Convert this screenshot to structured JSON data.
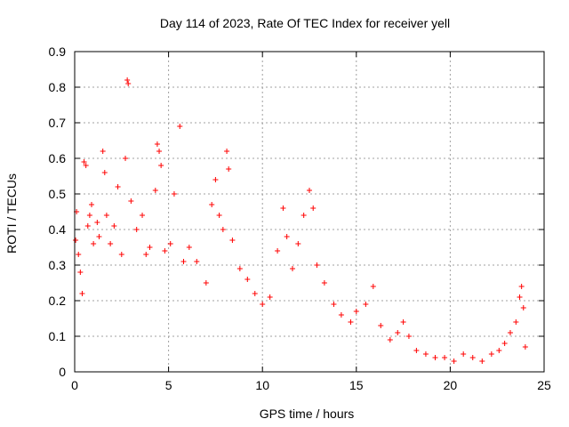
{
  "chart_data": {
    "type": "scatter",
    "title": "Day 114 of 2023, Rate Of TEC Index for receiver yell",
    "xlabel": "GPS time / hours",
    "ylabel": "ROTI / TECUs",
    "xlim": [
      0,
      25
    ],
    "ylim": [
      0,
      0.9
    ],
    "xticks": [
      "0",
      "5",
      "10",
      "15",
      "20",
      "25"
    ],
    "yticks": [
      "0",
      "0.1",
      "0.2",
      "0.3",
      "0.4",
      "0.5",
      "0.6",
      "0.7",
      "0.8",
      "0.9"
    ],
    "grid": true,
    "marker": "+",
    "color": "#ff0000",
    "series": [
      {
        "points": [
          [
            0.05,
            0.37
          ],
          [
            0.1,
            0.45
          ],
          [
            0.2,
            0.33
          ],
          [
            0.3,
            0.28
          ],
          [
            0.4,
            0.22
          ],
          [
            0.5,
            0.59
          ],
          [
            0.6,
            0.58
          ],
          [
            0.7,
            0.41
          ],
          [
            0.8,
            0.44
          ],
          [
            0.9,
            0.47
          ],
          [
            1.0,
            0.36
          ],
          [
            1.2,
            0.42
          ],
          [
            1.3,
            0.38
          ],
          [
            1.5,
            0.62
          ],
          [
            1.6,
            0.56
          ],
          [
            1.7,
            0.44
          ],
          [
            1.9,
            0.36
          ],
          [
            2.1,
            0.41
          ],
          [
            2.3,
            0.52
          ],
          [
            2.5,
            0.33
          ],
          [
            2.7,
            0.6
          ],
          [
            2.8,
            0.82
          ],
          [
            2.85,
            0.81
          ],
          [
            3.0,
            0.48
          ],
          [
            3.3,
            0.4
          ],
          [
            3.6,
            0.44
          ],
          [
            3.8,
            0.33
          ],
          [
            4.0,
            0.35
          ],
          [
            4.3,
            0.51
          ],
          [
            4.4,
            0.64
          ],
          [
            4.5,
            0.62
          ],
          [
            4.6,
            0.58
          ],
          [
            4.8,
            0.34
          ],
          [
            5.1,
            0.36
          ],
          [
            5.3,
            0.5
          ],
          [
            5.6,
            0.69
          ],
          [
            5.8,
            0.31
          ],
          [
            6.1,
            0.35
          ],
          [
            6.5,
            0.31
          ],
          [
            7.0,
            0.25
          ],
          [
            7.3,
            0.47
          ],
          [
            7.5,
            0.54
          ],
          [
            7.7,
            0.44
          ],
          [
            7.9,
            0.4
          ],
          [
            8.1,
            0.62
          ],
          [
            8.2,
            0.57
          ],
          [
            8.4,
            0.37
          ],
          [
            8.8,
            0.29
          ],
          [
            9.2,
            0.26
          ],
          [
            9.6,
            0.22
          ],
          [
            10.0,
            0.19
          ],
          [
            10.4,
            0.21
          ],
          [
            10.8,
            0.34
          ],
          [
            11.1,
            0.46
          ],
          [
            11.3,
            0.38
          ],
          [
            11.6,
            0.29
          ],
          [
            11.9,
            0.36
          ],
          [
            12.2,
            0.44
          ],
          [
            12.5,
            0.51
          ],
          [
            12.7,
            0.46
          ],
          [
            12.9,
            0.3
          ],
          [
            13.3,
            0.25
          ],
          [
            13.8,
            0.19
          ],
          [
            14.2,
            0.16
          ],
          [
            14.7,
            0.14
          ],
          [
            15.0,
            0.17
          ],
          [
            15.5,
            0.19
          ],
          [
            15.9,
            0.24
          ],
          [
            16.3,
            0.13
          ],
          [
            16.8,
            0.09
          ],
          [
            17.2,
            0.11
          ],
          [
            17.5,
            0.14
          ],
          [
            17.8,
            0.1
          ],
          [
            18.2,
            0.06
          ],
          [
            18.7,
            0.05
          ],
          [
            19.2,
            0.04
          ],
          [
            19.7,
            0.04
          ],
          [
            20.2,
            0.03
          ],
          [
            20.7,
            0.05
          ],
          [
            21.2,
            0.04
          ],
          [
            21.7,
            0.03
          ],
          [
            22.2,
            0.05
          ],
          [
            22.6,
            0.06
          ],
          [
            22.9,
            0.08
          ],
          [
            23.2,
            0.11
          ],
          [
            23.5,
            0.14
          ],
          [
            23.7,
            0.21
          ],
          [
            23.8,
            0.24
          ],
          [
            23.9,
            0.18
          ],
          [
            24.0,
            0.07
          ]
        ]
      }
    ]
  }
}
